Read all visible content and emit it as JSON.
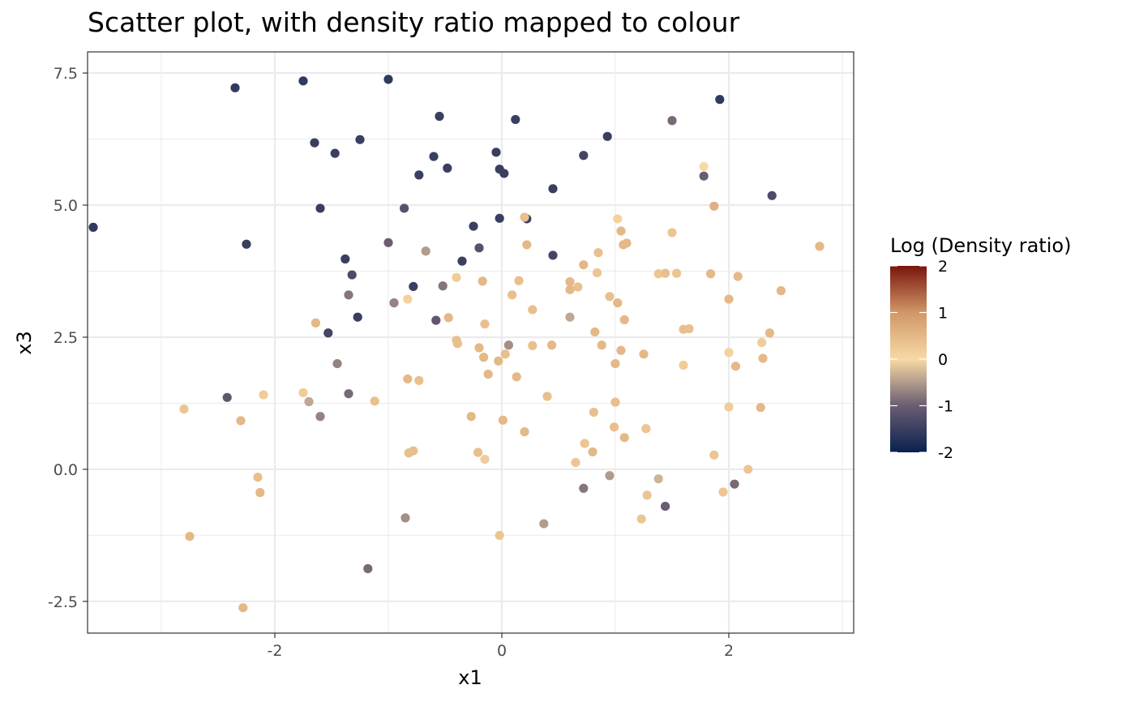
{
  "chart_data": {
    "type": "scatter",
    "title": "Scatter plot, with density ratio mapped to colour",
    "xlabel": "x1",
    "ylabel": "x3",
    "xlim": [
      -3.65,
      3.1
    ],
    "ylim": [
      -3.1,
      7.9
    ],
    "x_ticks": [
      -2,
      0,
      2
    ],
    "x_tick_labels": [
      "-2",
      "0",
      "2"
    ],
    "y_ticks": [
      -2.5,
      0,
      2.5,
      5,
      7.5
    ],
    "y_tick_labels": [
      "-2.5",
      "0.0",
      "2.5",
      "5.0",
      "7.5"
    ],
    "grid": true,
    "legend": {
      "title": "Log (Density ratio)",
      "placement": "right",
      "ticks": [
        2,
        1,
        0,
        -1,
        -2
      ],
      "tick_labels": [
        "2",
        "1",
        "0",
        "-1",
        "-2"
      ],
      "range": [
        -2,
        2
      ],
      "colors": {
        "-2": "#0a2150",
        "-1": "#6a5d72",
        "0": "#f8d9a5",
        "1": "#d09768",
        "2": "#7a150c"
      }
    },
    "series": [
      {
        "points": [
          {
            "x": -3.6,
            "y": 4.58,
            "c": -1.6
          },
          {
            "x": -2.35,
            "y": 7.22,
            "c": -1.6
          },
          {
            "x": -1.75,
            "y": 7.35,
            "c": -1.6
          },
          {
            "x": -1.0,
            "y": 7.38,
            "c": -1.6
          },
          {
            "x": -0.55,
            "y": 6.68,
            "c": -1.5
          },
          {
            "x": 0.12,
            "y": 6.62,
            "c": -1.5
          },
          {
            "x": 1.92,
            "y": 7.0,
            "c": -1.6
          },
          {
            "x": 1.5,
            "y": 6.6,
            "c": -0.9
          },
          {
            "x": -1.65,
            "y": 6.18,
            "c": -1.5
          },
          {
            "x": -1.47,
            "y": 5.98,
            "c": -1.5
          },
          {
            "x": -1.25,
            "y": 6.24,
            "c": -1.5
          },
          {
            "x": -0.6,
            "y": 5.92,
            "c": -1.5
          },
          {
            "x": -0.05,
            "y": 6.0,
            "c": -1.5
          },
          {
            "x": 0.72,
            "y": 5.94,
            "c": -1.4
          },
          {
            "x": 0.93,
            "y": 6.3,
            "c": -1.5
          },
          {
            "x": -0.73,
            "y": 5.57,
            "c": -1.5
          },
          {
            "x": -0.48,
            "y": 5.7,
            "c": -1.5
          },
          {
            "x": -0.02,
            "y": 5.68,
            "c": -1.5
          },
          {
            "x": 0.02,
            "y": 5.6,
            "c": -1.5
          },
          {
            "x": 1.78,
            "y": 5.55,
            "c": -1.0
          },
          {
            "x": 1.78,
            "y": 5.73,
            "c": 0.0
          },
          {
            "x": 0.45,
            "y": 5.31,
            "c": -1.5
          },
          {
            "x": 2.38,
            "y": 5.18,
            "c": -1.3
          },
          {
            "x": -1.6,
            "y": 4.94,
            "c": -1.5
          },
          {
            "x": -0.86,
            "y": 4.94,
            "c": -1.2
          },
          {
            "x": -2.25,
            "y": 4.26,
            "c": -1.5
          },
          {
            "x": -0.02,
            "y": 4.75,
            "c": -1.5
          },
          {
            "x": 0.22,
            "y": 4.74,
            "c": -1.5
          },
          {
            "x": 0.2,
            "y": 4.77,
            "c": 0.4
          },
          {
            "x": -0.25,
            "y": 4.6,
            "c": -1.5
          },
          {
            "x": -1.0,
            "y": 4.29,
            "c": -1.0
          },
          {
            "x": -0.2,
            "y": 4.19,
            "c": -1.2
          },
          {
            "x": -0.67,
            "y": 4.13,
            "c": -0.5
          },
          {
            "x": 0.45,
            "y": 4.05,
            "c": -1.4
          },
          {
            "x": -0.35,
            "y": 3.94,
            "c": -1.5
          },
          {
            "x": -1.38,
            "y": 3.98,
            "c": -1.5
          },
          {
            "x": -1.32,
            "y": 3.68,
            "c": -1.3
          },
          {
            "x": -0.78,
            "y": 3.46,
            "c": -1.5
          },
          {
            "x": -0.52,
            "y": 3.47,
            "c": -0.8
          },
          {
            "x": -1.35,
            "y": 3.3,
            "c": -0.8
          },
          {
            "x": -1.27,
            "y": 2.88,
            "c": -1.5
          },
          {
            "x": -1.53,
            "y": 2.58,
            "c": -1.4
          },
          {
            "x": -0.58,
            "y": 2.82,
            "c": -1.1
          },
          {
            "x": -0.95,
            "y": 3.15,
            "c": -0.7
          },
          {
            "x": -0.83,
            "y": 3.22,
            "c": 0.1
          },
          {
            "x": -0.4,
            "y": 3.63,
            "c": 0.2
          },
          {
            "x": 0.22,
            "y": 4.25,
            "c": 0.5
          },
          {
            "x": 1.02,
            "y": 4.74,
            "c": 0.1
          },
          {
            "x": 1.05,
            "y": 4.51,
            "c": 0.5
          },
          {
            "x": 1.5,
            "y": 4.48,
            "c": 0.3
          },
          {
            "x": 1.87,
            "y": 4.98,
            "c": 0.6
          },
          {
            "x": 1.07,
            "y": 4.25,
            "c": 0.5
          },
          {
            "x": 1.1,
            "y": 4.28,
            "c": 0.5
          },
          {
            "x": 0.85,
            "y": 4.1,
            "c": 0.4
          },
          {
            "x": 0.72,
            "y": 3.87,
            "c": 0.5
          },
          {
            "x": 2.8,
            "y": 4.22,
            "c": 0.5
          },
          {
            "x": 1.38,
            "y": 3.7,
            "c": 0.3
          },
          {
            "x": 1.44,
            "y": 3.71,
            "c": 0.4
          },
          {
            "x": 1.54,
            "y": 3.71,
            "c": 0.3
          },
          {
            "x": 1.84,
            "y": 3.7,
            "c": 0.5
          },
          {
            "x": 2.08,
            "y": 3.65,
            "c": 0.5
          },
          {
            "x": 2.46,
            "y": 3.38,
            "c": 0.5
          },
          {
            "x": 0.15,
            "y": 3.57,
            "c": 0.4
          },
          {
            "x": -0.17,
            "y": 3.56,
            "c": 0.5
          },
          {
            "x": 0.6,
            "y": 3.55,
            "c": 0.5
          },
          {
            "x": 0.6,
            "y": 3.4,
            "c": 0.5
          },
          {
            "x": 0.67,
            "y": 3.45,
            "c": 0.4
          },
          {
            "x": 0.84,
            "y": 3.72,
            "c": 0.3
          },
          {
            "x": 0.09,
            "y": 3.3,
            "c": 0.4
          },
          {
            "x": 0.95,
            "y": 3.27,
            "c": 0.4
          },
          {
            "x": 1.02,
            "y": 3.15,
            "c": 0.5
          },
          {
            "x": 2.0,
            "y": 3.22,
            "c": 0.5
          },
          {
            "x": 0.27,
            "y": 3.02,
            "c": 0.4
          },
          {
            "x": -0.47,
            "y": 2.87,
            "c": 0.5
          },
          {
            "x": 0.6,
            "y": 2.88,
            "c": -0.4
          },
          {
            "x": 1.08,
            "y": 2.83,
            "c": 0.5
          },
          {
            "x": -1.64,
            "y": 2.77,
            "c": 0.5
          },
          {
            "x": -0.15,
            "y": 2.75,
            "c": 0.4
          },
          {
            "x": 0.82,
            "y": 2.6,
            "c": 0.5
          },
          {
            "x": 1.6,
            "y": 2.65,
            "c": 0.4
          },
          {
            "x": 1.65,
            "y": 2.66,
            "c": 0.4
          },
          {
            "x": 2.36,
            "y": 2.58,
            "c": 0.5
          },
          {
            "x": -0.4,
            "y": 2.44,
            "c": 0.4
          },
          {
            "x": -0.39,
            "y": 2.38,
            "c": 0.4
          },
          {
            "x": 0.06,
            "y": 2.35,
            "c": -0.6
          },
          {
            "x": 0.27,
            "y": 2.34,
            "c": 0.4
          },
          {
            "x": 0.44,
            "y": 2.35,
            "c": 0.5
          },
          {
            "x": 0.88,
            "y": 2.35,
            "c": 0.5
          },
          {
            "x": 2.29,
            "y": 2.4,
            "c": 0.2
          },
          {
            "x": -0.2,
            "y": 2.3,
            "c": 0.5
          },
          {
            "x": 1.05,
            "y": 2.25,
            "c": 0.5
          },
          {
            "x": 0.03,
            "y": 2.18,
            "c": 0.4
          },
          {
            "x": 1.25,
            "y": 2.18,
            "c": 0.5
          },
          {
            "x": -0.16,
            "y": 2.12,
            "c": 0.5
          },
          {
            "x": 2.0,
            "y": 2.21,
            "c": 0.1
          },
          {
            "x": 2.3,
            "y": 2.1,
            "c": 0.5
          },
          {
            "x": -1.45,
            "y": 2.0,
            "c": -0.7
          },
          {
            "x": -0.03,
            "y": 2.05,
            "c": 0.5
          },
          {
            "x": 1.0,
            "y": 2.0,
            "c": 0.5
          },
          {
            "x": 1.6,
            "y": 1.97,
            "c": 0.2
          },
          {
            "x": 2.06,
            "y": 1.95,
            "c": 0.5
          },
          {
            "x": -0.12,
            "y": 1.8,
            "c": 0.5
          },
          {
            "x": 0.13,
            "y": 1.75,
            "c": 0.5
          },
          {
            "x": -0.83,
            "y": 1.71,
            "c": 0.5
          },
          {
            "x": -0.73,
            "y": 1.68,
            "c": 0.4
          },
          {
            "x": -2.1,
            "y": 1.41,
            "c": 0.2
          },
          {
            "x": -1.75,
            "y": 1.45,
            "c": 0.2
          },
          {
            "x": -2.42,
            "y": 1.36,
            "c": -1.1
          },
          {
            "x": -1.35,
            "y": 1.43,
            "c": -0.9
          },
          {
            "x": -1.7,
            "y": 1.28,
            "c": -0.4
          },
          {
            "x": -1.12,
            "y": 1.29,
            "c": 0.4
          },
          {
            "x": 0.4,
            "y": 1.38,
            "c": 0.4
          },
          {
            "x": 1.0,
            "y": 1.27,
            "c": 0.4
          },
          {
            "x": 2.0,
            "y": 1.18,
            "c": 0.2
          },
          {
            "x": 2.28,
            "y": 1.17,
            "c": 0.5
          },
          {
            "x": -2.8,
            "y": 1.14,
            "c": 0.3
          },
          {
            "x": -1.6,
            "y": 1.0,
            "c": -0.7
          },
          {
            "x": -0.27,
            "y": 1.0,
            "c": 0.5
          },
          {
            "x": 0.81,
            "y": 1.08,
            "c": 0.4
          },
          {
            "x": -2.3,
            "y": 0.92,
            "c": 0.5
          },
          {
            "x": 0.01,
            "y": 0.93,
            "c": 0.5
          },
          {
            "x": 0.99,
            "y": 0.8,
            "c": 0.4
          },
          {
            "x": 1.27,
            "y": 0.77,
            "c": 0.3
          },
          {
            "x": 0.2,
            "y": 0.71,
            "c": 0.5
          },
          {
            "x": 1.08,
            "y": 0.6,
            "c": 0.5
          },
          {
            "x": 0.73,
            "y": 0.49,
            "c": 0.3
          },
          {
            "x": -0.82,
            "y": 0.31,
            "c": 0.4
          },
          {
            "x": -0.78,
            "y": 0.35,
            "c": 0.4
          },
          {
            "x": -0.21,
            "y": 0.32,
            "c": 0.4
          },
          {
            "x": 0.8,
            "y": 0.33,
            "c": 0.5
          },
          {
            "x": -0.15,
            "y": 0.19,
            "c": 0.2
          },
          {
            "x": 0.65,
            "y": 0.13,
            "c": 0.3
          },
          {
            "x": 1.87,
            "y": 0.27,
            "c": 0.3
          },
          {
            "x": 2.17,
            "y": 0.0,
            "c": 0.3
          },
          {
            "x": -2.15,
            "y": -0.15,
            "c": 0.4
          },
          {
            "x": 0.95,
            "y": -0.12,
            "c": -0.5
          },
          {
            "x": 1.38,
            "y": -0.18,
            "c": -0.3
          },
          {
            "x": 0.72,
            "y": -0.36,
            "c": -0.8
          },
          {
            "x": 2.05,
            "y": -0.28,
            "c": -0.9
          },
          {
            "x": -2.13,
            "y": -0.44,
            "c": 0.5
          },
          {
            "x": 1.28,
            "y": -0.49,
            "c": 0.3
          },
          {
            "x": 1.95,
            "y": -0.43,
            "c": 0.3
          },
          {
            "x": 1.44,
            "y": -0.7,
            "c": -1.0
          },
          {
            "x": -0.85,
            "y": -0.92,
            "c": -0.6
          },
          {
            "x": 1.23,
            "y": -0.94,
            "c": 0.3
          },
          {
            "x": 0.37,
            "y": -1.03,
            "c": -0.5
          },
          {
            "x": -2.75,
            "y": -1.27,
            "c": 0.5
          },
          {
            "x": -0.02,
            "y": -1.25,
            "c": 0.3
          },
          {
            "x": -1.18,
            "y": -1.88,
            "c": -0.9
          },
          {
            "x": -2.28,
            "y": -2.62,
            "c": 0.5
          }
        ]
      }
    ]
  }
}
